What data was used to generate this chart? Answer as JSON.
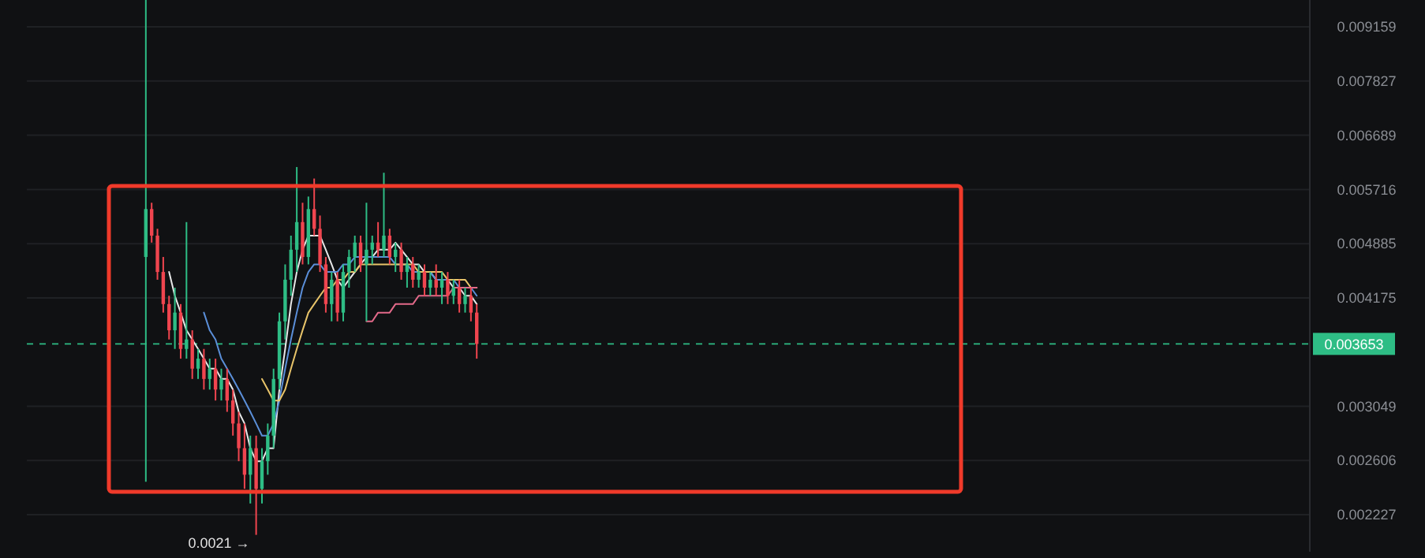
{
  "chart_data": {
    "type": "candlestick",
    "log": true,
    "grid": "y",
    "tick_labels": "y",
    "ylim": [
      0.002,
      0.0099
    ],
    "yticks": [
      0.002227,
      0.002606,
      0.003049,
      0.004175,
      0.004885,
      0.005716,
      0.006689,
      0.007827,
      0.009159
    ],
    "categories": [
      null,
      null,
      null,
      null,
      null,
      null,
      null,
      null,
      null,
      null,
      null,
      null,
      null,
      null,
      null,
      null,
      null,
      null,
      null,
      null,
      null,
      null,
      null,
      null,
      null,
      null,
      null,
      null,
      null,
      null,
      null,
      null,
      null,
      null,
      null,
      null,
      null,
      null,
      null,
      null,
      null,
      null,
      null,
      null,
      null,
      null,
      null,
      null,
      null,
      null,
      null,
      null,
      null,
      null,
      null,
      null,
      null,
      null,
      null,
      null,
      null,
      null,
      null,
      null,
      null,
      null,
      null,
      null,
      null,
      null,
      null,
      null,
      null,
      null,
      null,
      null,
      null,
      null,
      null,
      null,
      null,
      null,
      null,
      null,
      null,
      null,
      null,
      null,
      null,
      null,
      null,
      null,
      null,
      null,
      null,
      null,
      null,
      null,
      null,
      null,
      null,
      null,
      null,
      null,
      null,
      null,
      null,
      null,
      null,
      null,
      null,
      null,
      null,
      null,
      null,
      null,
      null,
      null,
      null,
      null,
      null,
      null,
      null,
      null,
      null,
      null,
      null,
      null,
      null,
      null,
      null,
      null,
      null,
      null,
      null,
      null,
      null,
      null,
      null,
      null,
      null,
      null,
      null,
      null,
      null,
      null,
      null,
      null,
      null,
      null,
      null,
      null,
      null,
      null,
      null,
      null,
      null,
      null,
      null,
      null,
      null,
      null,
      null,
      null,
      null,
      null,
      null,
      null,
      null,
      null,
      null,
      null,
      null,
      null,
      null,
      null,
      null,
      null,
      null,
      null,
      null,
      null,
      null,
      null,
      null,
      null,
      null,
      null,
      null,
      null,
      null,
      null,
      null,
      null,
      null,
      null,
      null,
      null,
      null,
      null,
      null,
      null,
      null,
      null,
      null,
      null,
      null,
      null,
      null,
      null,
      null,
      null,
      null,
      null,
      null,
      null,
      null,
      null,
      null,
      null,
      null
    ],
    "ohlc": [
      null,
      null,
      null,
      null,
      null,
      null,
      null,
      null,
      null,
      null,
      null,
      null,
      null,
      null,
      null,
      null,
      null,
      null,
      null,
      null,
      [
        0.0047,
        0.0099,
        0.00245,
        0.0054
      ],
      [
        0.0054,
        0.0055,
        0.0049,
        0.005
      ],
      [
        0.005,
        0.0051,
        0.0044,
        0.0045
      ],
      [
        0.0045,
        0.0047,
        0.004,
        0.0041
      ],
      [
        0.0041,
        0.0042,
        0.0037,
        0.0038
      ],
      [
        0.0038,
        0.0043,
        0.0036,
        0.004
      ],
      [
        0.004,
        0.0041,
        0.0035,
        0.0036
      ],
      [
        0.0036,
        0.0052,
        0.0035,
        0.0037
      ],
      [
        0.0037,
        0.0038,
        0.0033,
        0.0034
      ],
      [
        0.0034,
        0.0036,
        0.0033,
        0.0035
      ],
      [
        0.0035,
        0.0036,
        0.0032,
        0.0033
      ],
      [
        0.0033,
        0.0035,
        0.0032,
        0.0034
      ],
      [
        0.0034,
        0.0035,
        0.0031,
        0.0032
      ],
      [
        0.0032,
        0.0034,
        0.0031,
        0.0033
      ],
      [
        0.0033,
        0.0034,
        0.003,
        0.0031
      ],
      [
        0.0031,
        0.0032,
        0.0028,
        0.0029
      ],
      [
        0.0029,
        0.003,
        0.0026,
        0.0027
      ],
      [
        0.0027,
        0.0029,
        0.0024,
        0.0025
      ],
      [
        0.0025,
        0.0028,
        0.0023,
        0.0027
      ],
      [
        0.0027,
        0.0028,
        0.0021,
        0.0024
      ],
      [
        0.0024,
        0.0027,
        0.0023,
        0.0026
      ],
      [
        0.0026,
        0.0029,
        0.0025,
        0.0028
      ],
      [
        0.0028,
        0.0034,
        0.0027,
        0.0033
      ],
      [
        0.0033,
        0.004,
        0.0032,
        0.0039
      ],
      [
        0.0039,
        0.0046,
        0.0037,
        0.0044
      ],
      [
        0.0044,
        0.005,
        0.0042,
        0.0048
      ],
      [
        0.0048,
        0.0061,
        0.0045,
        0.0052
      ],
      [
        0.0052,
        0.0055,
        0.0046,
        0.0047
      ],
      [
        0.0047,
        0.0056,
        0.0046,
        0.0054
      ],
      [
        0.0054,
        0.0059,
        0.005,
        0.0051
      ],
      [
        0.0051,
        0.0053,
        0.0045,
        0.0046
      ],
      [
        0.0046,
        0.0047,
        0.004,
        0.0041
      ],
      [
        0.0041,
        0.0045,
        0.0039,
        0.0044
      ],
      [
        0.0044,
        0.0045,
        0.0039,
        0.004
      ],
      [
        0.004,
        0.0046,
        0.0039,
        0.0045
      ],
      [
        0.0045,
        0.0048,
        0.0043,
        0.0047
      ],
      [
        0.0047,
        0.005,
        0.0045,
        0.0049
      ],
      [
        0.0049,
        0.005,
        0.0045,
        0.0046
      ],
      [
        0.0046,
        0.0055,
        0.0039,
        0.0048
      ],
      [
        0.0048,
        0.005,
        0.0046,
        0.0049
      ],
      [
        0.0049,
        0.0052,
        0.0047,
        0.0048
      ],
      [
        0.0048,
        0.006,
        0.0047,
        0.005
      ],
      [
        0.005,
        0.0051,
        0.0046,
        0.0047
      ],
      [
        0.0047,
        0.0049,
        0.0045,
        0.0048
      ],
      [
        0.0048,
        0.0049,
        0.0044,
        0.0045
      ],
      [
        0.0045,
        0.0047,
        0.0043,
        0.0046
      ],
      [
        0.0046,
        0.0047,
        0.0043,
        0.0044
      ],
      [
        0.0044,
        0.0046,
        0.0043,
        0.0045
      ],
      [
        0.0045,
        0.0046,
        0.0042,
        0.0043
      ],
      [
        0.0043,
        0.0045,
        0.0042,
        0.0044
      ],
      [
        0.0044,
        0.0046,
        0.0042,
        0.0043
      ],
      [
        0.0043,
        0.0045,
        0.0041,
        0.0044
      ],
      [
        0.0044,
        0.0045,
        0.0041,
        0.0042
      ],
      [
        0.0042,
        0.0044,
        0.0041,
        0.0043
      ],
      [
        0.0043,
        0.0044,
        0.004,
        0.0041
      ],
      [
        0.0041,
        0.0043,
        0.004,
        0.0042
      ],
      [
        0.0042,
        0.0043,
        0.0039,
        0.004
      ],
      [
        0.004,
        0.0041,
        0.0035,
        0.003653
      ],
      null,
      null,
      null,
      null,
      null,
      null,
      null,
      null,
      null,
      null,
      null,
      null,
      null,
      null,
      null,
      null,
      null,
      null,
      null,
      null,
      null,
      null,
      null,
      null,
      null,
      null,
      null,
      null,
      null,
      null,
      null,
      null,
      null,
      null,
      null,
      null,
      null,
      null,
      null,
      null,
      null,
      null,
      null,
      null,
      null,
      null,
      null,
      null,
      null,
      null,
      null,
      null,
      null,
      null,
      null,
      null,
      null,
      null,
      null,
      null,
      null,
      null,
      null,
      null,
      null,
      null,
      null,
      null,
      null,
      null,
      null,
      null,
      null,
      null,
      null,
      null,
      null,
      null,
      null,
      null,
      null,
      null,
      null,
      null,
      null,
      null,
      null,
      null,
      null,
      null,
      null,
      null,
      null,
      null,
      null,
      null,
      null,
      null,
      null,
      null,
      null,
      null,
      null,
      null,
      null,
      null,
      null,
      null,
      null,
      null,
      null,
      null,
      null,
      null,
      null,
      null,
      null,
      null,
      null,
      null,
      null,
      null,
      null,
      null,
      null,
      null,
      null,
      null,
      null,
      null,
      null,
      null,
      null,
      null,
      null,
      null,
      null,
      null,
      null,
      null,
      null,
      null,
      null
    ],
    "colors": [
      null,
      null,
      null,
      null,
      null,
      null,
      null,
      null,
      null,
      null,
      null,
      null,
      null,
      null,
      null,
      null,
      null,
      null,
      null,
      null,
      "#2ebd85",
      "#f0454f",
      "#f0454f",
      "#f0454f",
      "#f0454f",
      "#2ebd85",
      "#f0454f",
      "#2ebd85",
      "#f0454f",
      "#2ebd85",
      "#f0454f",
      "#2ebd85",
      "#f0454f",
      "#2ebd85",
      "#f0454f",
      "#f0454f",
      "#f0454f",
      "#f0454f",
      "#2ebd85",
      "#f0454f",
      "#2ebd85",
      "#2ebd85",
      "#2ebd85",
      "#2ebd85",
      "#2ebd85",
      "#2ebd85",
      "#2ebd85",
      "#f0454f",
      "#2ebd85",
      "#f0454f",
      "#f0454f",
      "#f0454f",
      "#2ebd85",
      "#f0454f",
      "#2ebd85",
      "#2ebd85",
      "#2ebd85",
      "#f0454f",
      "#2ebd85",
      "#2ebd85",
      "#f0454f",
      "#2ebd85",
      "#f0454f",
      "#2ebd85",
      "#f0454f",
      "#2ebd85",
      "#f0454f",
      "#2ebd85",
      "#f0454f",
      "#2ebd85",
      "#f0454f",
      "#2ebd85",
      "#f0454f",
      "#2ebd85",
      "#f0454f",
      "#2ebd85",
      "#f0454f",
      "#f0454f",
      null,
      null,
      null,
      null,
      null,
      null,
      null,
      null,
      null,
      null,
      null,
      null,
      null,
      null,
      null,
      null,
      null,
      null,
      null,
      null,
      null,
      null,
      null,
      null,
      null,
      null,
      null,
      null,
      null,
      null,
      null,
      null,
      null,
      null,
      null,
      null,
      null,
      null,
      null,
      null,
      null,
      null,
      null,
      null,
      null,
      null,
      null,
      null,
      null,
      null,
      null,
      null,
      null,
      null,
      null,
      null,
      null,
      null,
      null,
      null,
      null,
      null,
      null,
      null,
      null,
      null,
      null,
      null,
      null,
      null,
      null,
      null,
      null,
      null,
      null,
      null,
      null,
      null,
      null,
      null,
      null,
      null,
      null,
      null,
      null,
      null,
      null,
      null,
      null,
      null,
      null,
      null,
      null,
      null,
      null,
      null,
      null,
      null,
      null,
      null,
      null,
      null,
      null,
      null,
      null,
      null,
      null,
      null,
      null,
      null,
      null,
      null,
      null,
      null,
      null,
      null,
      null,
      null,
      null,
      null,
      null,
      null,
      null,
      null,
      null,
      null,
      null,
      null,
      null,
      null,
      null,
      null,
      null,
      null,
      null,
      null,
      null,
      null,
      null,
      null,
      null,
      null,
      null
    ],
    "series": [
      {
        "type": "line",
        "color": "#e8e8e8",
        "values": [
          null,
          null,
          null,
          null,
          null,
          null,
          null,
          null,
          null,
          null,
          null,
          null,
          null,
          null,
          null,
          null,
          null,
          null,
          null,
          null,
          null,
          null,
          null,
          null,
          0.0045,
          0.0042,
          0.004,
          0.0038,
          0.0037,
          0.0036,
          0.0035,
          0.0034,
          0.0034,
          0.0033,
          0.0033,
          0.0032,
          0.003,
          0.0029,
          0.0027,
          0.0026,
          0.0026,
          0.0027,
          0.0027,
          0.0032,
          0.0036,
          0.0041,
          0.0045,
          0.0048,
          0.005,
          0.005,
          0.005,
          0.0048,
          0.0046,
          0.0044,
          0.0043,
          0.0044,
          0.0045,
          0.0046,
          0.0047,
          0.0047,
          0.0048,
          0.0048,
          0.0048,
          0.0049,
          0.0048,
          0.0047,
          0.0046,
          0.0046,
          0.0045,
          0.0045,
          0.0044,
          0.0044,
          0.0044,
          0.0043,
          0.0043,
          0.0042,
          0.0042,
          0.0041,
          null,
          null,
          null,
          null,
          null,
          null,
          null,
          null,
          null,
          null,
          null,
          null,
          null,
          null,
          null,
          null,
          null,
          null,
          null,
          null,
          null,
          null,
          null,
          null,
          null,
          null,
          null,
          null,
          null,
          null,
          null,
          null,
          null,
          null,
          null,
          null,
          null,
          null,
          null,
          null,
          null,
          null,
          null,
          null,
          null,
          null,
          null,
          null,
          null,
          null,
          null,
          null,
          null,
          null,
          null,
          null,
          null,
          null,
          null,
          null,
          null,
          null,
          null,
          null,
          null,
          null,
          null,
          null,
          null,
          null,
          null,
          null,
          null,
          null,
          null,
          null,
          null,
          null,
          null,
          null,
          null,
          null,
          null,
          null,
          null,
          null,
          null,
          null,
          null,
          null,
          null,
          null,
          null,
          null,
          null,
          null,
          null,
          null,
          null,
          null,
          null,
          null,
          null,
          null,
          null,
          null,
          null,
          null,
          null,
          null,
          null,
          null,
          null,
          null,
          null,
          null,
          null,
          null,
          null,
          null,
          null,
          null,
          null,
          null,
          null,
          null,
          null,
          null,
          null,
          null,
          null,
          null,
          null,
          null,
          null,
          null,
          null,
          null,
          null,
          null,
          null,
          null,
          null
        ]
      },
      {
        "type": "line",
        "color": "#5b8fd9",
        "values": [
          null,
          null,
          null,
          null,
          null,
          null,
          null,
          null,
          null,
          null,
          null,
          null,
          null,
          null,
          null,
          null,
          null,
          null,
          null,
          null,
          null,
          null,
          null,
          null,
          null,
          null,
          null,
          null,
          null,
          null,
          0.004,
          0.0038,
          0.0037,
          0.0035,
          0.0034,
          0.0033,
          0.0032,
          0.0031,
          0.003,
          0.0029,
          0.0028,
          0.0028,
          0.0029,
          0.0031,
          0.0034,
          0.0037,
          0.004,
          0.0043,
          0.0045,
          0.0046,
          0.0046,
          0.0045,
          0.0045,
          0.0045,
          0.0046,
          0.0046,
          0.0047,
          0.0047,
          0.0047,
          0.0047,
          0.0047,
          0.0047,
          0.0047,
          0.0046,
          0.0046,
          0.0046,
          0.0045,
          0.0045,
          0.0045,
          0.0045,
          0.0044,
          0.0044,
          0.0044,
          0.0044,
          0.0043,
          0.0043,
          0.0043,
          0.0042,
          null,
          null,
          null,
          null,
          null,
          null,
          null,
          null,
          null,
          null,
          null,
          null,
          null,
          null,
          null,
          null,
          null,
          null,
          null,
          null,
          null,
          null,
          null,
          null,
          null,
          null,
          null,
          null,
          null,
          null,
          null,
          null,
          null,
          null,
          null,
          null,
          null,
          null,
          null,
          null,
          null,
          null,
          null,
          null,
          null,
          null,
          null,
          null,
          null,
          null,
          null,
          null,
          null,
          null,
          null,
          null,
          null,
          null,
          null,
          null,
          null,
          null,
          null,
          null,
          null,
          null,
          null,
          null,
          null,
          null,
          null,
          null,
          null,
          null,
          null,
          null,
          null,
          null,
          null,
          null,
          null,
          null,
          null,
          null,
          null,
          null,
          null,
          null,
          null,
          null,
          null,
          null,
          null,
          null,
          null,
          null,
          null,
          null,
          null,
          null,
          null,
          null,
          null,
          null,
          null,
          null,
          null,
          null,
          null,
          null,
          null,
          null,
          null,
          null,
          null,
          null,
          null,
          null,
          null,
          null,
          null,
          null,
          null,
          null,
          null,
          null,
          null,
          null,
          null,
          null,
          null,
          null,
          null,
          null,
          null,
          null,
          null,
          null,
          null,
          null,
          null,
          null,
          null
        ]
      },
      {
        "type": "line",
        "color": "#e8c46a",
        "values": [
          null,
          null,
          null,
          null,
          null,
          null,
          null,
          null,
          null,
          null,
          null,
          null,
          null,
          null,
          null,
          null,
          null,
          null,
          null,
          null,
          null,
          null,
          null,
          null,
          null,
          null,
          null,
          null,
          null,
          null,
          null,
          null,
          null,
          null,
          null,
          null,
          null,
          null,
          null,
          null,
          0.0033,
          0.0032,
          0.0031,
          0.0031,
          0.0032,
          0.0034,
          0.0036,
          0.0038,
          0.004,
          0.0041,
          0.0042,
          0.0043,
          0.0043,
          0.0044,
          0.0044,
          0.0045,
          0.0045,
          0.0046,
          0.0046,
          0.0046,
          0.0046,
          0.0046,
          0.0046,
          0.0046,
          0.0046,
          0.0046,
          0.0046,
          0.0045,
          0.0045,
          0.0045,
          0.0045,
          0.0045,
          0.0044,
          0.0044,
          0.0044,
          0.0044,
          0.0043,
          0.0043,
          null,
          null,
          null,
          null,
          null,
          null,
          null,
          null,
          null,
          null,
          null,
          null,
          null,
          null,
          null,
          null,
          null,
          null,
          null,
          null,
          null,
          null,
          null,
          null,
          null,
          null,
          null,
          null,
          null,
          null,
          null,
          null,
          null,
          null,
          null,
          null,
          null,
          null,
          null,
          null,
          null,
          null,
          null,
          null,
          null,
          null,
          null,
          null,
          null,
          null,
          null,
          null,
          null,
          null,
          null,
          null,
          null,
          null,
          null,
          null,
          null,
          null,
          null,
          null,
          null,
          null,
          null,
          null,
          null,
          null,
          null,
          null,
          null,
          null,
          null,
          null,
          null,
          null,
          null,
          null,
          null,
          null,
          null,
          null,
          null,
          null,
          null,
          null,
          null,
          null,
          null,
          null,
          null,
          null,
          null,
          null,
          null,
          null,
          null,
          null,
          null,
          null,
          null,
          null,
          null,
          null,
          null,
          null,
          null,
          null,
          null,
          null,
          null,
          null,
          null,
          null,
          null,
          null,
          null,
          null,
          null,
          null,
          null,
          null,
          null,
          null,
          null,
          null,
          null,
          null,
          null,
          null,
          null,
          null,
          null,
          null,
          null,
          null,
          null,
          null,
          null,
          null,
          null
        ]
      },
      {
        "type": "line",
        "color": "#e36a8a",
        "values": [
          null,
          null,
          null,
          null,
          null,
          null,
          null,
          null,
          null,
          null,
          null,
          null,
          null,
          null,
          null,
          null,
          null,
          null,
          null,
          null,
          null,
          null,
          null,
          null,
          null,
          null,
          null,
          null,
          null,
          null,
          null,
          null,
          null,
          null,
          null,
          null,
          null,
          null,
          null,
          null,
          null,
          null,
          null,
          null,
          null,
          null,
          null,
          null,
          null,
          null,
          null,
          null,
          null,
          null,
          null,
          null,
          null,
          null,
          0.0039,
          0.0039,
          0.004,
          0.004,
          0.004,
          0.0041,
          0.0041,
          0.0041,
          0.0041,
          0.0042,
          0.0042,
          0.0042,
          0.0042,
          0.0042,
          0.0042,
          0.0043,
          0.0043,
          0.0043,
          0.0043,
          0.0043,
          null,
          null,
          null,
          null,
          null,
          null,
          null,
          null,
          null,
          null,
          null,
          null,
          null,
          null,
          null,
          null,
          null,
          null,
          null,
          null,
          null,
          null,
          null,
          null,
          null,
          null,
          null,
          null,
          null,
          null,
          null,
          null,
          null,
          null,
          null,
          null,
          null,
          null,
          null,
          null,
          null,
          null,
          null,
          null,
          null,
          null,
          null,
          null,
          null,
          null,
          null,
          null,
          null,
          null,
          null,
          null,
          null,
          null,
          null,
          null,
          null,
          null,
          null,
          null,
          null,
          null,
          null,
          null,
          null,
          null,
          null,
          null,
          null,
          null,
          null,
          null,
          null,
          null,
          null,
          null,
          null,
          null,
          null,
          null,
          null,
          null,
          null,
          null,
          null,
          null,
          null,
          null,
          null,
          null,
          null,
          null,
          null,
          null,
          null,
          null,
          null,
          null,
          null,
          null,
          null,
          null,
          null,
          null,
          null,
          null,
          null,
          null,
          null,
          null,
          null,
          null,
          null,
          null,
          null,
          null,
          null,
          null,
          null,
          null,
          null,
          null,
          null,
          null,
          null,
          null,
          null,
          null,
          null,
          null,
          null,
          null,
          null,
          null,
          null,
          null,
          null,
          null,
          null
        ]
      }
    ],
    "ref_lines": [
      {
        "axis": "y",
        "value": 0.003653,
        "label": "0.003653",
        "color": "#2ebd85",
        "line_style": "dashed"
      }
    ],
    "annotations": [
      "0.0021 →"
    ]
  }
}
